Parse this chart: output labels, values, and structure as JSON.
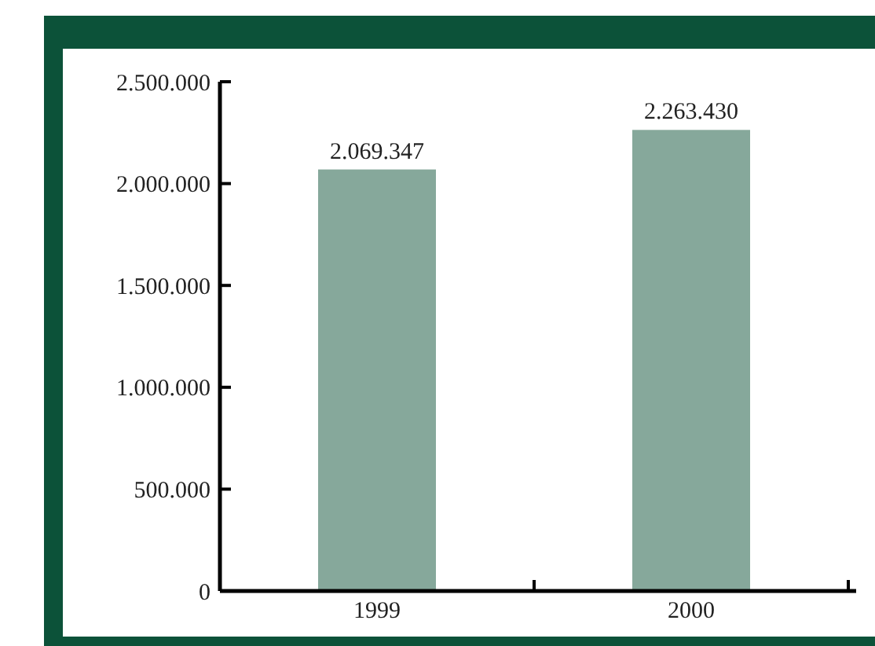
{
  "chart_data": {
    "type": "bar",
    "categories": [
      "1999",
      "2000"
    ],
    "values": [
      2069347,
      2263430
    ],
    "color": "#86a89b",
    "ylim": [
      0,
      2500000
    ],
    "yticks": [
      {
        "value": 0,
        "label": "0"
      },
      {
        "value": 500000,
        "label": "500.000"
      },
      {
        "value": 1000000,
        "label": "1.000.000"
      },
      {
        "value": 1500000,
        "label": "1.500.000"
      },
      {
        "value": 2000000,
        "label": "2.000.000"
      },
      {
        "value": 2500000,
        "label": "2.500.000"
      }
    ],
    "value_labels": [
      "2.069.347",
      "2.263.430"
    ],
    "grid": false
  }
}
